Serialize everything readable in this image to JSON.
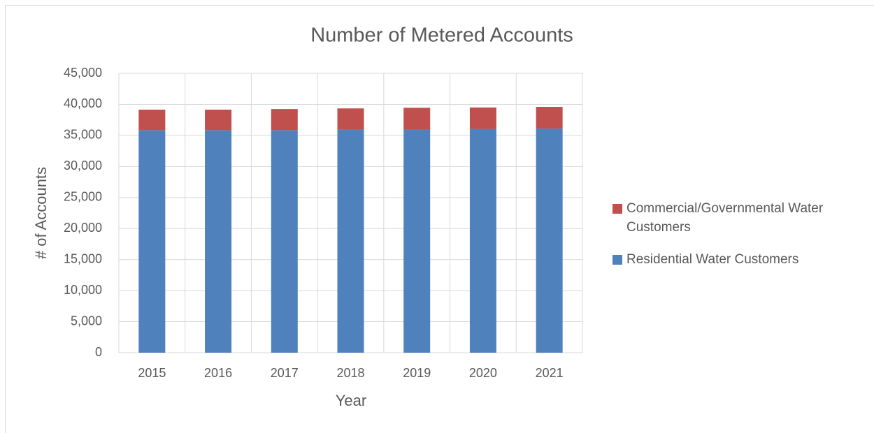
{
  "chart_data": {
    "type": "stacked_bar",
    "title": "Number of Metered Accounts",
    "x_label": "Year",
    "y_label": "# of Accounts",
    "categories": [
      "2015",
      "2016",
      "2017",
      "2018",
      "2019",
      "2020",
      "2021"
    ],
    "series": [
      {
        "name": "Residential Water Customers",
        "color": "#4f81bd",
        "values": [
          35850,
          35850,
          35850,
          35950,
          35950,
          36050,
          36100
        ]
      },
      {
        "name": "Commercial/Governmental Water Customers",
        "color": "#c0504d",
        "values": [
          3300,
          3300,
          3400,
          3400,
          3500,
          3450,
          3500
        ]
      }
    ],
    "ylim": [
      0,
      45000
    ],
    "yticks": [
      0,
      {
        "value": 5000,
        "label": "5,000"
      },
      {
        "value": 10000,
        "label": "10,000"
      },
      {
        "value": 15000,
        "label": "15,000"
      },
      {
        "value": 20000,
        "label": "20,000"
      },
      {
        "value": 25000,
        "label": "25,000"
      },
      {
        "value": 30000,
        "label": "30,000"
      },
      {
        "value": 35000,
        "label": "35,000"
      },
      {
        "value": 40000,
        "label": "40,000"
      },
      {
        "value": 45000,
        "label": "45,000"
      }
    ],
    "grid": true,
    "legend": "right"
  }
}
